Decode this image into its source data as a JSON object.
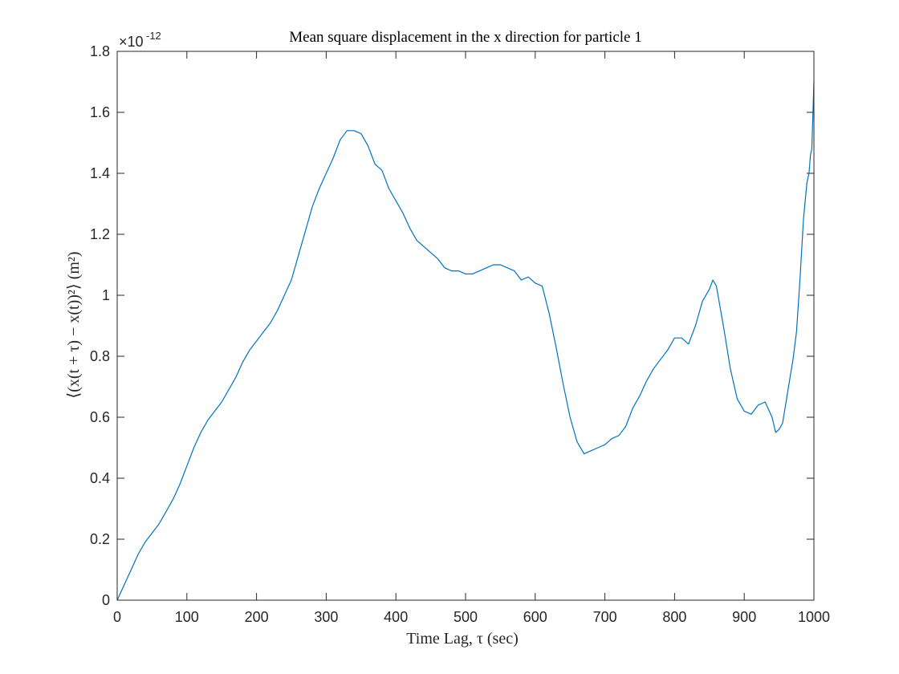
{
  "chart_data": {
    "type": "line",
    "title": "Mean square displacement in the x direction for particle 1",
    "xlabel": "Time Lag, τ (sec)",
    "ylabel": "⟨(x(t + τ) − x(t))²⟩ (m²)",
    "y_multiplier": {
      "base": "×10",
      "exponent": "-12"
    },
    "xlim": [
      0,
      1000
    ],
    "ylim": [
      0,
      1.8
    ],
    "xticks": [
      0,
      100,
      200,
      300,
      400,
      500,
      600,
      700,
      800,
      900,
      1000
    ],
    "xtick_labels": [
      "0",
      "100",
      "200",
      "300",
      "400",
      "500",
      "600",
      "700",
      "800",
      "900",
      "1000"
    ],
    "yticks": [
      0,
      0.2,
      0.4,
      0.6,
      0.8,
      1.0,
      1.2,
      1.4,
      1.6,
      1.8
    ],
    "ytick_labels": [
      "0",
      "0.2",
      "0.4",
      "0.6",
      "0.8",
      "1",
      "1.2",
      "1.4",
      "1.6",
      "1.8"
    ],
    "grid": false,
    "series": [
      {
        "color": "#0072BD",
        "x": [
          0,
          10,
          20,
          30,
          40,
          50,
          60,
          70,
          80,
          90,
          100,
          110,
          120,
          130,
          140,
          150,
          160,
          170,
          180,
          190,
          200,
          210,
          220,
          230,
          240,
          250,
          260,
          270,
          280,
          290,
          300,
          310,
          320,
          330,
          340,
          350,
          360,
          370,
          380,
          390,
          400,
          410,
          420,
          430,
          440,
          450,
          460,
          470,
          480,
          490,
          500,
          510,
          520,
          530,
          540,
          550,
          560,
          570,
          580,
          590,
          600,
          610,
          620,
          630,
          640,
          650,
          660,
          670,
          680,
          690,
          700,
          710,
          720,
          730,
          740,
          750,
          760,
          770,
          780,
          790,
          800,
          810,
          820,
          830,
          840,
          850,
          855,
          860,
          870,
          880,
          890,
          900,
          910,
          920,
          930,
          940,
          945,
          950,
          955,
          960,
          965,
          970,
          975,
          980,
          985,
          990,
          993,
          995,
          997,
          1000
        ],
        "y": [
          0,
          0.05,
          0.1,
          0.15,
          0.19,
          0.22,
          0.25,
          0.29,
          0.33,
          0.38,
          0.44,
          0.5,
          0.55,
          0.59,
          0.62,
          0.65,
          0.69,
          0.73,
          0.78,
          0.82,
          0.85,
          0.88,
          0.91,
          0.95,
          1.0,
          1.05,
          1.13,
          1.21,
          1.29,
          1.35,
          1.4,
          1.45,
          1.51,
          1.54,
          1.54,
          1.53,
          1.49,
          1.43,
          1.41,
          1.35,
          1.31,
          1.27,
          1.22,
          1.18,
          1.16,
          1.14,
          1.12,
          1.09,
          1.08,
          1.08,
          1.07,
          1.07,
          1.08,
          1.09,
          1.1,
          1.1,
          1.09,
          1.08,
          1.05,
          1.06,
          1.04,
          1.03,
          0.94,
          0.83,
          0.71,
          0.6,
          0.52,
          0.48,
          0.49,
          0.5,
          0.51,
          0.53,
          0.54,
          0.57,
          0.63,
          0.67,
          0.72,
          0.76,
          0.79,
          0.82,
          0.86,
          0.86,
          0.84,
          0.9,
          0.98,
          1.02,
          1.05,
          1.03,
          0.9,
          0.76,
          0.66,
          0.62,
          0.61,
          0.64,
          0.65,
          0.6,
          0.55,
          0.56,
          0.58,
          0.65,
          0.72,
          0.79,
          0.88,
          1.05,
          1.25,
          1.37,
          1.4,
          1.46,
          1.48,
          1.7
        ]
      }
    ]
  }
}
